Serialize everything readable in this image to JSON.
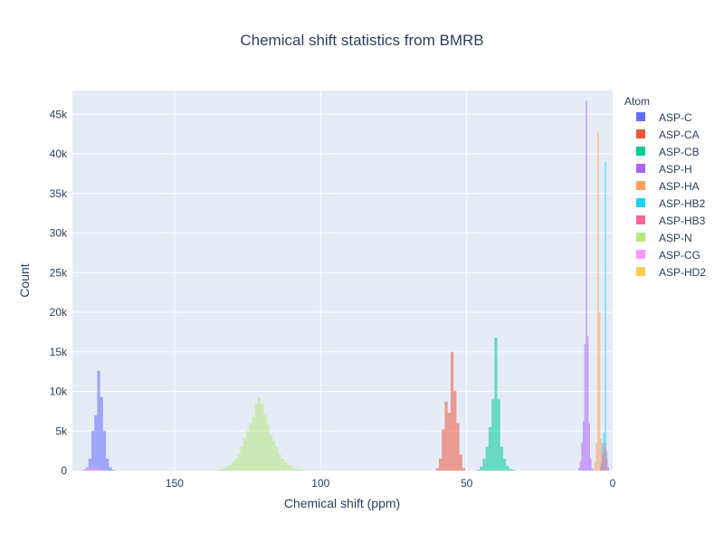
{
  "chart_data": {
    "type": "bar",
    "title": "Chemical shift statistics from BMRB",
    "xlabel": "Chemical shift (ppm)",
    "ylabel": "Count",
    "x_reversed": true,
    "xlim": [
      185,
      0
    ],
    "ylim": [
      0,
      48000
    ],
    "xticks": [
      150,
      100,
      50,
      0
    ],
    "yticks": [
      0,
      5000,
      10000,
      15000,
      20000,
      25000,
      30000,
      35000,
      40000,
      45000
    ],
    "ytick_labels": [
      "0",
      "5k",
      "10k",
      "15k",
      "20k",
      "25k",
      "30k",
      "35k",
      "40k",
      "45k"
    ],
    "grid": true,
    "legend": {
      "title": "Atom",
      "position": "right"
    },
    "series": [
      {
        "name": "ASP-C",
        "color": "#636efa",
        "bin_width": 1,
        "x": [
          181,
          180,
          179,
          178,
          177,
          176,
          175,
          174,
          173,
          172,
          171
        ],
        "values": [
          100,
          400,
          1500,
          5000,
          7000,
          12600,
          9300,
          5000,
          1500,
          400,
          100
        ]
      },
      {
        "name": "ASP-CA",
        "color": "#EF553B",
        "bin_width": 1,
        "x": [
          60,
          59,
          58,
          57,
          56,
          55,
          54,
          53,
          52,
          51
        ],
        "values": [
          300,
          1500,
          5200,
          8700,
          7300,
          15000,
          10100,
          6000,
          2000,
          300
        ]
      },
      {
        "name": "ASP-CB",
        "color": "#00cc96",
        "bin_width": 1,
        "x": [
          46,
          45,
          44,
          43,
          42,
          41,
          40,
          39,
          38,
          37,
          36,
          35,
          34
        ],
        "values": [
          100,
          500,
          1500,
          3000,
          5500,
          9000,
          16800,
          9000,
          3000,
          1500,
          600,
          200,
          100
        ]
      },
      {
        "name": "ASP-H",
        "color": "#ab63fa",
        "bin_width": 0.5,
        "x": [
          11.5,
          11,
          10.5,
          10,
          9.5,
          9,
          8.5,
          8,
          7.5,
          7,
          6.5
        ],
        "values": [
          300,
          1200,
          3500,
          6300,
          16000,
          46700,
          17000,
          6000,
          1500,
          300,
          100
        ]
      },
      {
        "name": "ASP-HA",
        "color": "#FFA15A",
        "bin_width": 0.5,
        "x": [
          6,
          5.5,
          5,
          4.5,
          4,
          3.5
        ],
        "values": [
          1000,
          3500,
          42800,
          20000,
          4000,
          500
        ]
      },
      {
        "name": "ASP-HB2",
        "color": "#19d3f3",
        "bin_width": 0.5,
        "x": [
          4,
          3.5,
          3,
          2.5,
          2,
          1.5
        ],
        "values": [
          1000,
          3500,
          4800,
          39000,
          2500,
          500
        ]
      },
      {
        "name": "ASP-HB3",
        "color": "#FF6692",
        "bin_width": 0.5,
        "x": [
          4,
          3.5,
          3,
          2.5,
          2,
          1.5
        ],
        "values": [
          500,
          2000,
          3000,
          3500,
          1500,
          300
        ]
      },
      {
        "name": "ASP-N",
        "color": "#B6E880",
        "bin_width": 1,
        "x": [
          135,
          134,
          133,
          132,
          131,
          130,
          129,
          128,
          127,
          126,
          125,
          124,
          123,
          122,
          121,
          120,
          119,
          118,
          117,
          116,
          115,
          114,
          113,
          112,
          111,
          110,
          109,
          108,
          107,
          106,
          105
        ],
        "values": [
          100,
          200,
          300,
          500,
          700,
          1000,
          1500,
          2000,
          3000,
          4000,
          5000,
          6000,
          6800,
          8400,
          9200,
          8400,
          7000,
          5800,
          4500,
          3800,
          3000,
          2000,
          1500,
          1000,
          700,
          500,
          300,
          200,
          150,
          100,
          50
        ]
      },
      {
        "name": "ASP-CG",
        "color": "#FF97FF",
        "bin_width": 1,
        "x": [
          182,
          181,
          180,
          179,
          178,
          177,
          176,
          175,
          174,
          173
        ],
        "values": [
          50,
          150,
          300,
          400,
          500,
          400,
          300,
          150,
          80,
          30
        ]
      },
      {
        "name": "ASP-HD2",
        "color": "#FECB52",
        "bin_width": 0.5,
        "x": [
          6,
          5.5,
          5,
          4.5
        ],
        "values": [
          50,
          150,
          200,
          100
        ]
      }
    ]
  }
}
